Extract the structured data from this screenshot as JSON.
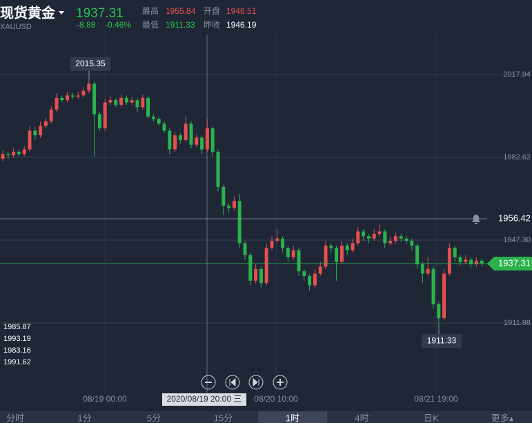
{
  "header": {
    "name": "现货黄金",
    "symbol": "XAUUSD",
    "price": "1937.31",
    "change": "-8.88",
    "change_pct": "-0.46%",
    "stats": [
      {
        "label": "最高",
        "value": "1955.84"
      },
      {
        "label": "开盘",
        "value": "1946.51"
      },
      {
        "label": "最低",
        "value": "1911.33"
      },
      {
        "label": "昨收",
        "value": "1946.19"
      }
    ]
  },
  "chart_data": {
    "type": "candlestick",
    "up_color": "#e5504f",
    "down_color": "#2bb24c",
    "ylim": [
      1890.8,
      2035.0
    ],
    "yticks": [
      2017.94,
      1982.62,
      {
        "value": 1947.3,
        "label": "1947.30"
      },
      1911.98
    ],
    "candles": {
      "open": [
        1982,
        1984,
        1983.5,
        1985,
        1984,
        1986,
        1994,
        1992,
        1996,
        1998,
        2003,
        2008,
        2007,
        2009,
        2008.5,
        2009,
        2011,
        2014,
        2001,
        1995,
        2006,
        2007,
        2005,
        2008,
        2006,
        2007,
        2004,
        2008,
        2000,
        1999,
        1997,
        1994,
        1986,
        1992,
        1990,
        1997,
        1988,
        1991,
        1986,
        1995,
        1985,
        1970,
        1962,
        1961,
        1964,
        1946,
        1941,
        1930,
        1935,
        1929,
        1944,
        1947,
        1948,
        1944,
        1940,
        1943,
        1934,
        1932,
        1928,
        1933,
        1936,
        1945,
        1944,
        1938,
        1945,
        1943,
        1946,
        1951,
        1949,
        1948,
        1950,
        1951,
        1946,
        1947,
        1949,
        1948,
        1947,
        1945,
        1937,
        1933,
        1935,
        1920,
        1914,
        1933,
        1944,
        1940,
        1938,
        1939,
        1937,
        1938.5
      ],
      "high": [
        1985.5,
        1985,
        1986.5,
        1986,
        1987.5,
        1996,
        1995.5,
        1998,
        1999.5,
        2004.5,
        2010,
        2009,
        2010.5,
        2010,
        2010.5,
        2012.5,
        2015.35,
        2015,
        2002,
        2007.5,
        2008.5,
        2008,
        2009.5,
        2009,
        2008.5,
        2008,
        2009.5,
        2009,
        2001,
        2000,
        1998,
        1995,
        1993.5,
        1993,
        2000,
        1998,
        1992.5,
        1992,
        1999,
        1996,
        1986,
        1971,
        1963,
        1966,
        1967,
        1947,
        1942,
        1937,
        1936,
        1946,
        1949,
        1952,
        1949,
        1945,
        1945,
        1944,
        1935,
        1933,
        1935,
        1938,
        1947,
        1946,
        1945,
        1947,
        1946,
        1948,
        1953,
        1952,
        1950,
        1952,
        1954,
        1952,
        1948.5,
        1950.5,
        1950,
        1949,
        1948,
        1946,
        1938,
        1940,
        1936,
        1921,
        1935,
        1946,
        1945,
        1941,
        1941,
        1940,
        1940,
        1939.5
      ],
      "low": [
        1981,
        1982,
        1982.5,
        1983,
        1983,
        1985,
        1990,
        1991,
        1995,
        1997,
        2002,
        2006,
        2006,
        2007.5,
        2007.5,
        2008,
        2010,
        1983,
        1994,
        1994,
        2005,
        2004,
        2004,
        2005,
        2005,
        2002,
        2003,
        1999,
        1998,
        1996,
        1993,
        1984,
        1985,
        1988.5,
        1989,
        1986.5,
        1987,
        1984,
        1985,
        1983,
        1968,
        1958,
        1959,
        1960,
        1944,
        1939,
        1928,
        1929,
        1927,
        1928,
        1943,
        1946,
        1942,
        1938,
        1939,
        1932,
        1930,
        1926,
        1927,
        1932,
        1935,
        1942,
        1930,
        1937,
        1941,
        1942,
        1945,
        1947,
        1946,
        1947,
        1949,
        1944,
        1945,
        1946,
        1946.5,
        1945.5,
        1943,
        1935,
        1929,
        1932,
        1918,
        1911.33,
        1913,
        1932,
        1938,
        1936.5,
        1937,
        1935.5,
        1936,
        1936
      ],
      "close": [
        1984,
        1983.5,
        1985,
        1984,
        1986,
        1994,
        1992,
        1996,
        1998,
        2003,
        2008,
        2007,
        2009,
        2008.5,
        2009,
        2011,
        2014,
        2001,
        1995,
        2006,
        2007,
        2005,
        2008,
        2006,
        2007,
        2004,
        2008,
        2000,
        1999,
        1997,
        1994,
        1986,
        1992,
        1990,
        1997,
        1988,
        1991,
        1986,
        1995,
        1985,
        1970,
        1962,
        1961,
        1964,
        1946,
        1941,
        1930,
        1935,
        1929,
        1944,
        1947,
        1948,
        1944,
        1940,
        1943,
        1934,
        1932,
        1928,
        1933,
        1936,
        1945,
        1944,
        1938,
        1945,
        1943,
        1946,
        1951,
        1949,
        1948,
        1950,
        1951,
        1946,
        1947,
        1949,
        1948,
        1947,
        1945,
        1937,
        1933,
        1935,
        1920,
        1914,
        1933,
        1944,
        1940,
        1938,
        1939,
        1937,
        1938.5,
        1937.31
      ]
    },
    "high_label": 2015.35,
    "low_label": 1911.33,
    "alert_line": 1956.42,
    "last_price": 1937.31,
    "x_labels": [
      "08/19 00:00",
      "08/20 10:00",
      "08/21 19:00"
    ],
    "crosshair_label": "2020/08/19 20:00 三",
    "indicator_values": [
      1985.87,
      1993.19,
      1983.16,
      1991.62
    ]
  },
  "tabs": [
    "分时",
    "1分",
    "5分",
    "15分",
    "1时",
    "4时",
    "日K",
    "更多▴"
  ]
}
